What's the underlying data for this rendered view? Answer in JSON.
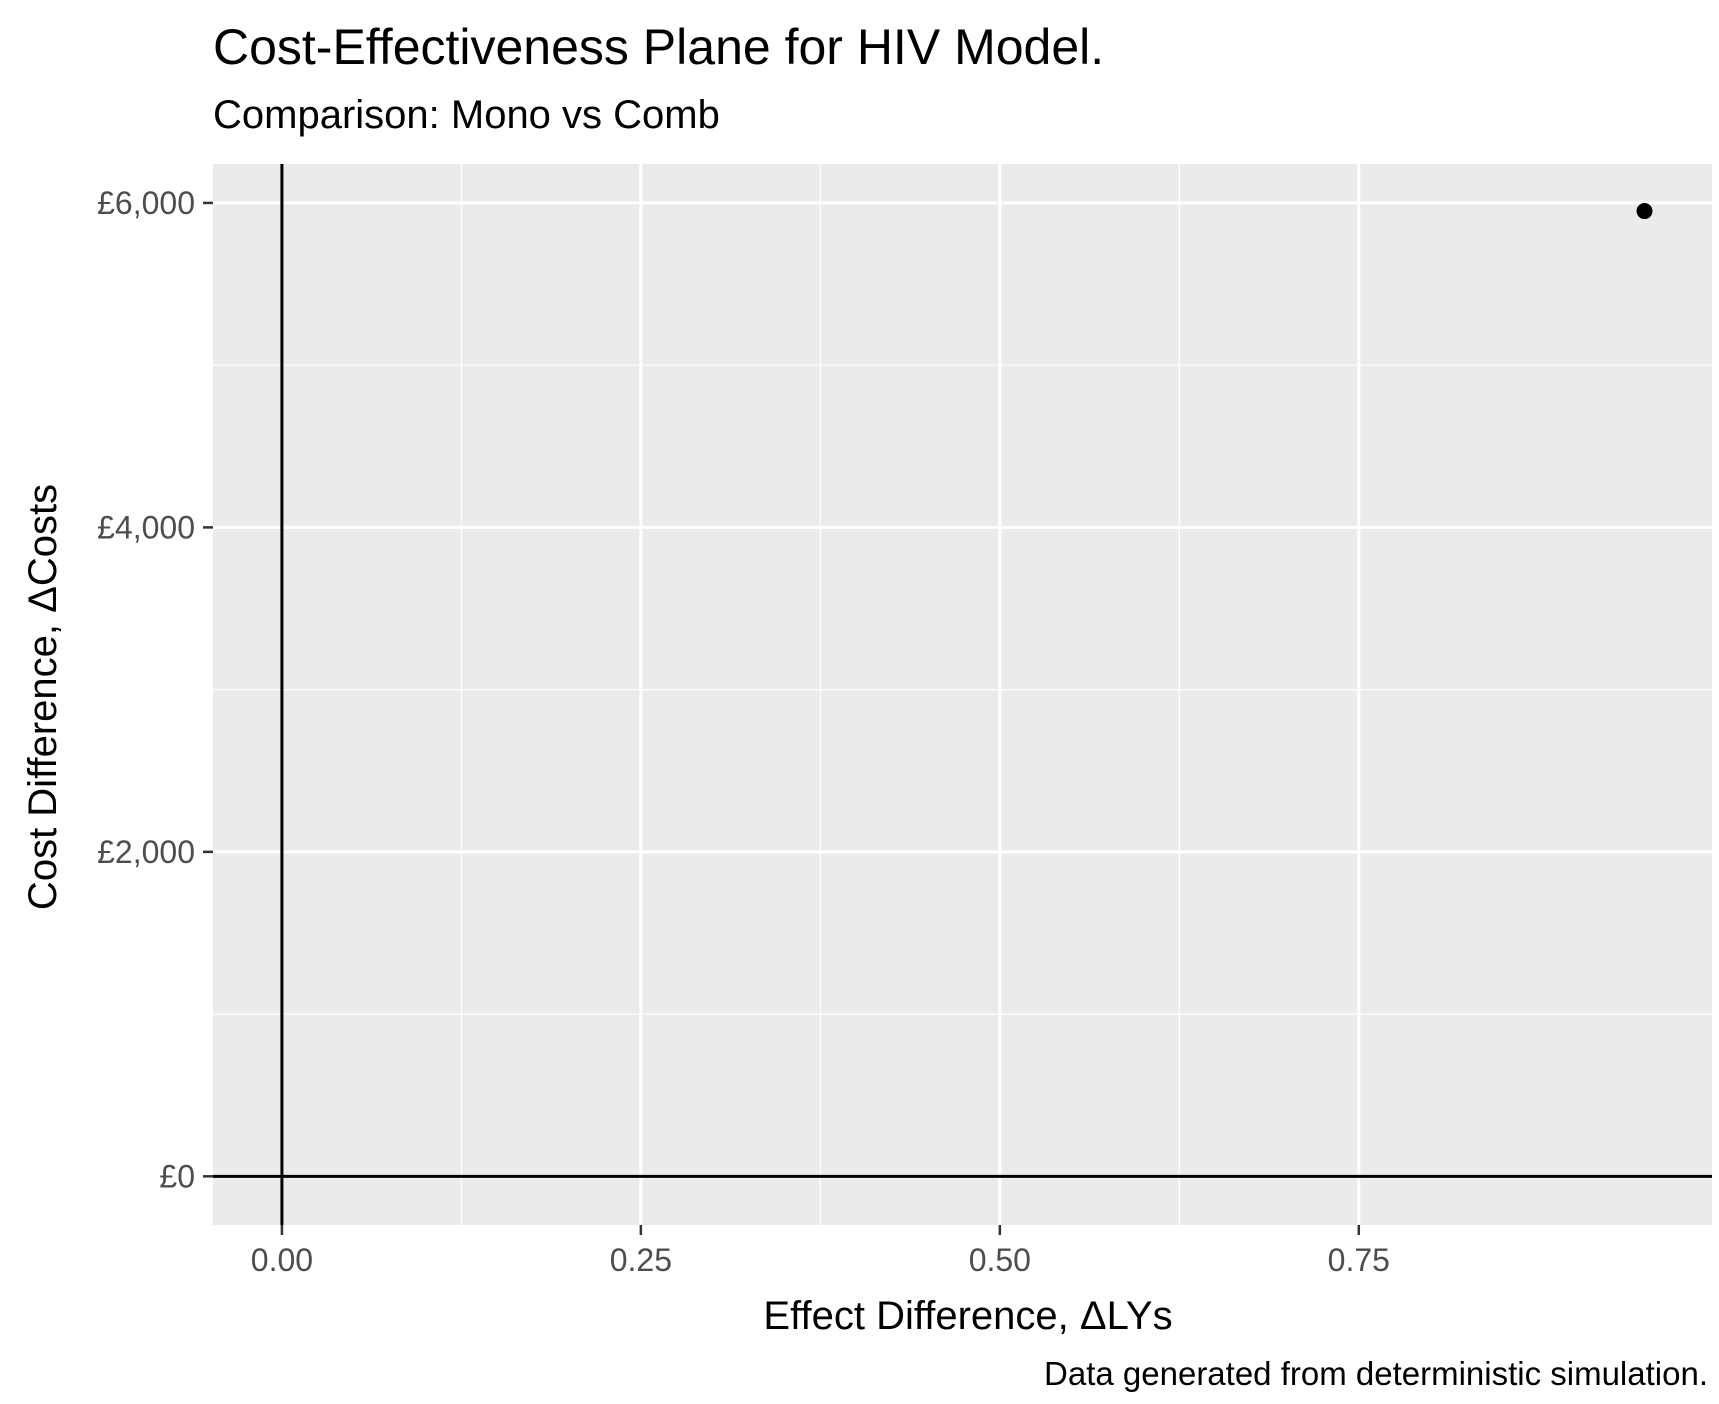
{
  "chart_data": {
    "type": "scatter",
    "title": "Cost-Effectiveness Plane for HIV Model.",
    "subtitle": "Comparison: Mono vs Comb",
    "caption": "Data generated from deterministic simulation.",
    "xlabel": "Effect Difference,  ΔLYs",
    "ylabel": "Cost Difference,  ΔCosts",
    "xlim": [
      -0.048,
      0.996
    ],
    "ylim": [
      -300,
      6240
    ],
    "x_ticks": [
      0,
      0.25,
      0.5,
      0.75
    ],
    "x_tick_labels": [
      "0.00",
      "0.25",
      "0.50",
      "0.75"
    ],
    "y_ticks": [
      0,
      2000,
      4000,
      6000
    ],
    "y_tick_labels": [
      "£0",
      "£2,000",
      "£4,000",
      "£6,000"
    ],
    "reference_lines": {
      "x": 0,
      "y": 0
    },
    "points": [
      {
        "x": 0.949,
        "y": 5950
      }
    ],
    "grid": true,
    "legend": "none",
    "colors": {
      "panel": "#ebebeb",
      "grid": "#ffffff",
      "point": "#000000",
      "axis_text": "#4d4d4d"
    }
  }
}
